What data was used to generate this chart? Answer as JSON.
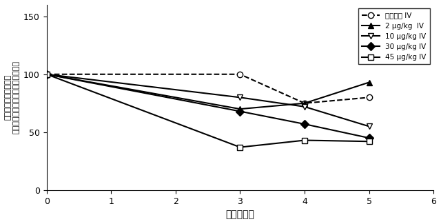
{
  "series": [
    {
      "label": "プラセボ IV",
      "x": [
        0,
        3,
        4,
        5
      ],
      "y": [
        100,
        100,
        75,
        80
      ],
      "marker": "o",
      "linestyle": "--",
      "markerfacecolor": "white",
      "markeredgecolor": "black"
    },
    {
      "label": "2 μg/kg  IV",
      "x": [
        0,
        3,
        4,
        5
      ],
      "y": [
        100,
        70,
        75,
        93
      ],
      "marker": "^",
      "linestyle": "-",
      "markerfacecolor": "black",
      "markeredgecolor": "black"
    },
    {
      "label": "10 μg/kg IV",
      "x": [
        0,
        3,
        4,
        5
      ],
      "y": [
        100,
        80,
        72,
        55
      ],
      "marker": "v",
      "linestyle": "-",
      "markerfacecolor": "white",
      "markeredgecolor": "black"
    },
    {
      "label": "30 μg/kg IV",
      "x": [
        0,
        3,
        4,
        5
      ],
      "y": [
        100,
        68,
        57,
        45
      ],
      "marker": "D",
      "linestyle": "-",
      "markerfacecolor": "black",
      "markeredgecolor": "black"
    },
    {
      "label": "45 μg/kg IV",
      "x": [
        0,
        3,
        4,
        5
      ],
      "y": [
        100,
        37,
        43,
        42
      ],
      "marker": "s",
      "linestyle": "-",
      "markerfacecolor": "white",
      "markeredgecolor": "black"
    }
  ],
  "xlabel": "時間（日）",
  "ylabel_top": "トリグリセリドの変化の平均（％）",
  "ylabel_bottom": "ベースラインに対する",
  "xlim": [
    0,
    6
  ],
  "ylim": [
    0,
    160
  ],
  "yticks": [
    0,
    50,
    100,
    150
  ],
  "xticks": [
    0,
    1,
    2,
    3,
    4,
    5,
    6
  ],
  "figsize": [
    6.4,
    3.25
  ],
  "dpi": 100,
  "markersize": 6,
  "linewidth": 1.5
}
